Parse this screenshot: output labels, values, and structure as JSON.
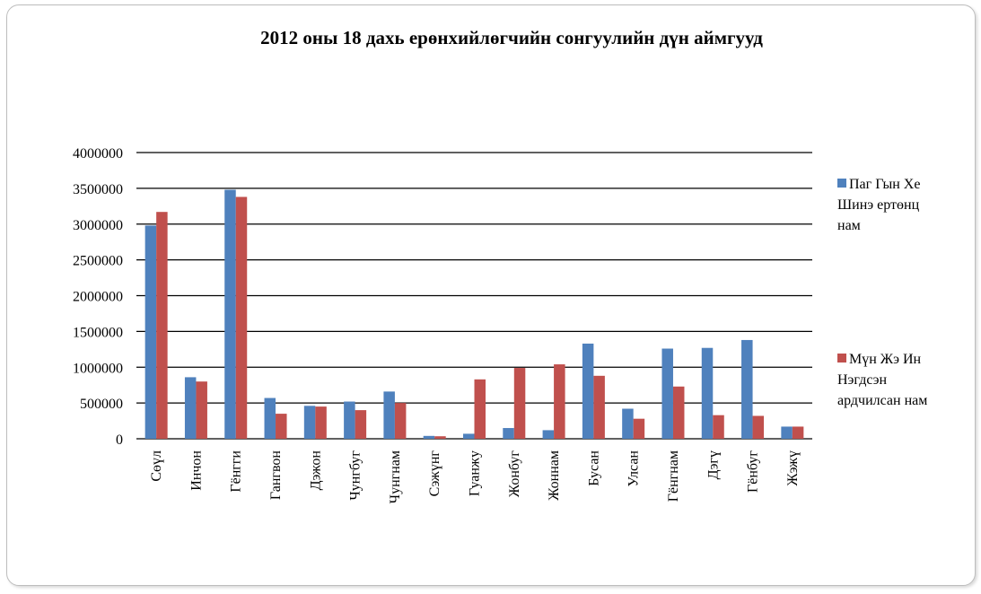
{
  "chart_data": {
    "type": "bar",
    "title": "2012 оны 18 дахь ерөнхийлөгчийн сонгуулийн дүн аймгууд",
    "categories": [
      "Сөүл",
      "Инчон",
      "Гёнгги",
      "Гангвон",
      "Дэжон",
      "Чунгбуг",
      "Чунгнам",
      "Сэжүнг",
      "Гуанжу",
      "Жонбуг",
      "Жоннам",
      "Бусан",
      "Улсан",
      "Гёнгнам",
      "Дэгү",
      "Гёнбуг",
      "Жэжү"
    ],
    "series": [
      {
        "name": "Паг Гын Хе Шинэ ертөнц нам",
        "legend_lines": [
          "Паг Гын Хе",
          "Шинэ ертөнц",
          "нам"
        ],
        "color": "#4f81bd",
        "values": [
          2980000,
          860000,
          3480000,
          570000,
          460000,
          520000,
          660000,
          40000,
          70000,
          150000,
          120000,
          1330000,
          420000,
          1260000,
          1270000,
          1380000,
          170000
        ]
      },
      {
        "name": "Мүн Жэ Ин Нэгдсэн ардчилсан нам",
        "legend_lines": [
          "Мүн Жэ Ин",
          "Нэгдсэн",
          "ардчилсан нам"
        ],
        "color": "#c0504d",
        "values": [
          3170000,
          800000,
          3380000,
          350000,
          450000,
          400000,
          500000,
          35000,
          830000,
          990000,
          1040000,
          880000,
          280000,
          730000,
          330000,
          320000,
          170000
        ]
      }
    ],
    "yticks": [
      0,
      500000,
      1000000,
      1500000,
      2000000,
      2500000,
      3000000,
      3500000,
      4000000
    ],
    "ylim": [
      0,
      4000000
    ],
    "grid": true,
    "legend_position": "right"
  }
}
